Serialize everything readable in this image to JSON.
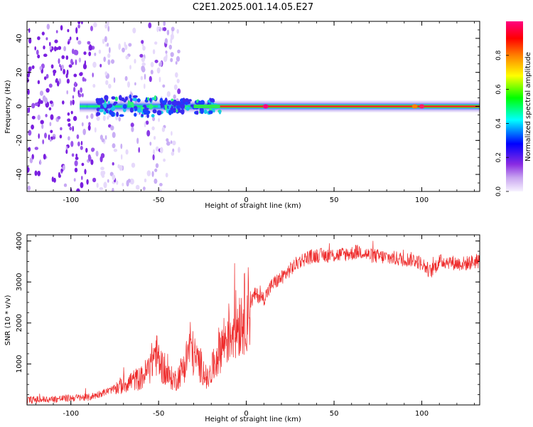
{
  "figure_title": "C2E1.2025.001.14.05.E27",
  "chart_data": [
    {
      "type": "heatmap",
      "xlabel": "Height of straight line (km)",
      "ylabel": "Frequency (Hz)",
      "xlim": [
        -125,
        133
      ],
      "ylim": [
        -50,
        50
      ],
      "x_ticks": [
        -100,
        -50,
        0,
        50,
        100
      ],
      "y_ticks": [
        -40,
        -20,
        0,
        20,
        40
      ],
      "colorbar": {
        "label": "Normalized spectral amplitude",
        "range": [
          0,
          1
        ],
        "ticks": [
          "0.0",
          "0.2",
          "0.4",
          "0.6",
          "0.8"
        ],
        "colormap": [
          "#f0e8ff",
          "#8a2be2",
          "#0000ff",
          "#00ffff",
          "#00ff00",
          "#ffff00",
          "#ff8000",
          "#ff0000",
          "#ff0080"
        ]
      },
      "features": {
        "noise_region_x": [
          -125,
          -38
        ],
        "dense_noise_x": [
          -125,
          -87
        ],
        "band_center_freq": 0,
        "strong_band_x": [
          -15,
          133
        ]
      }
    },
    {
      "type": "line",
      "xlabel": "Height of straight line (km)",
      "ylabel": "SNR (10 * v/v)",
      "xlim": [
        -125,
        133
      ],
      "ylim": [
        0,
        4150
      ],
      "x_ticks": [
        -100,
        -50,
        0,
        50,
        100
      ],
      "y_ticks": [
        1000,
        2000,
        3000,
        4000
      ],
      "line_color": "#ee2a2a",
      "series": [
        {
          "x": [
            -125,
            -110,
            -100,
            -95,
            -90,
            -85,
            -80,
            -75,
            -70,
            -65,
            -60,
            -55,
            -52,
            -50,
            -45,
            -40,
            -35,
            -32,
            -30,
            -25,
            -22,
            -20,
            -15,
            -10,
            -5,
            0,
            5,
            10,
            15,
            20,
            25,
            30,
            35,
            40,
            50,
            60,
            65,
            70,
            80,
            90,
            95,
            100,
            105,
            110,
            115,
            120,
            125,
            130,
            133
          ],
          "y": [
            120,
            140,
            170,
            180,
            180,
            250,
            320,
            400,
            500,
            600,
            650,
            900,
            1300,
            1100,
            700,
            600,
            1000,
            1500,
            1200,
            900,
            600,
            800,
            1400,
            1750,
            2000,
            2300,
            2700,
            2600,
            2950,
            3100,
            3300,
            3500,
            3600,
            3650,
            3650,
            3700,
            3750,
            3650,
            3600,
            3550,
            3550,
            3450,
            3250,
            3500,
            3500,
            3450,
            3450,
            3500,
            3500
          ]
        }
      ]
    }
  ]
}
